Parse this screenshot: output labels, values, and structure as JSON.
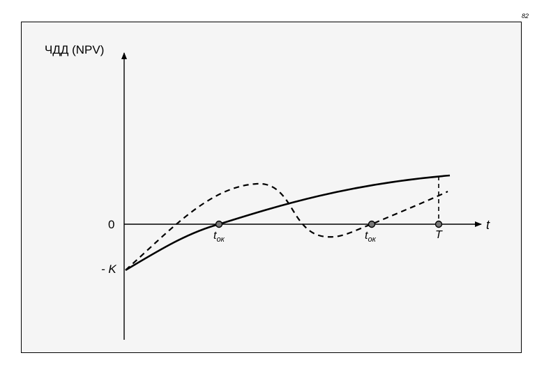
{
  "page_number": "82",
  "y_axis_label": "ЧДД (NPV)",
  "x_axis_label": "t",
  "zero_label": "0",
  "minus_k_label": "- K",
  "point_labels": {
    "t_ok_solid": {
      "main": "t",
      "sub": "ок"
    },
    "t_ok_dashed": {
      "main": "t",
      "sub": "ок"
    },
    "T": "T"
  },
  "colors": {
    "line": "#000000",
    "background": "#f5f5f5",
    "marker": "#777777"
  }
}
